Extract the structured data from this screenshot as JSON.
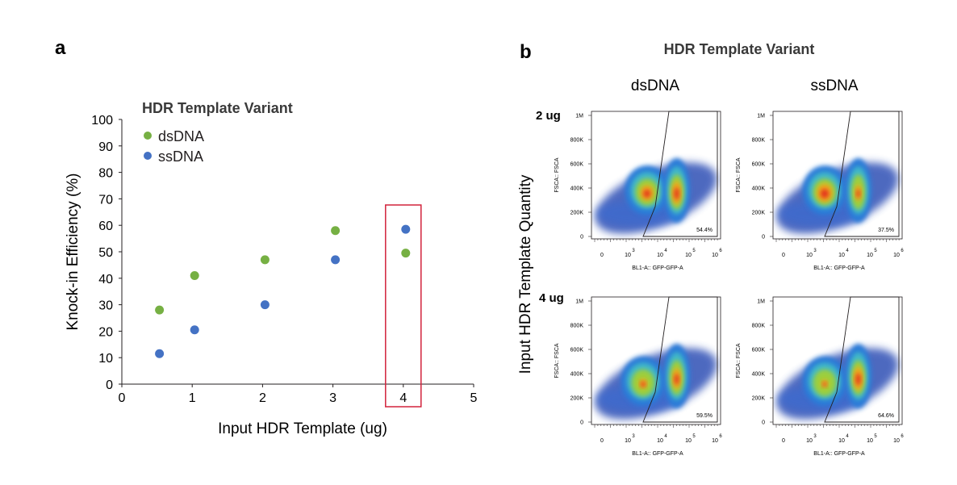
{
  "panels": {
    "a": "a",
    "b": "b"
  },
  "colors": {
    "dsDNA": "#76b043",
    "ssDNA": "#4472c4",
    "highlight": "#d2233c",
    "axis": "#231f20"
  },
  "chart_data": [
    {
      "type": "scatter",
      "legend_title": "HDR Template Variant",
      "xlabel": "Input HDR Template (ug)",
      "ylabel": "Knock-in Efficiency (%)",
      "xlim": [
        0,
        5
      ],
      "ylim": [
        0,
        100
      ],
      "x_ticks": [
        "0",
        "1",
        "2",
        "3",
        "4",
        "5"
      ],
      "y_ticks": [
        "0",
        "10",
        "20",
        "30",
        "40",
        "50",
        "60",
        "70",
        "80",
        "90",
        "100"
      ],
      "legend_position": "top-left",
      "grid": false,
      "highlight_x": 4,
      "series": [
        {
          "name": "dsDNA",
          "color": "#76b043",
          "points": [
            [
              0.5,
              28
            ],
            [
              1,
              41
            ],
            [
              2,
              47
            ],
            [
              3,
              58
            ],
            [
              4,
              49.5
            ]
          ]
        },
        {
          "name": "ssDNA",
          "color": "#4472c4",
          "points": [
            [
              0.5,
              11.5
            ],
            [
              1,
              20.5
            ],
            [
              2,
              30
            ],
            [
              3,
              47
            ],
            [
              4,
              58.5
            ]
          ]
        }
      ]
    },
    {
      "type": "heatmap",
      "title": "HDR Template Variant",
      "columns": [
        "dsDNA",
        "ssDNA"
      ],
      "rows": [
        "2 ug",
        "4 ug"
      ],
      "row_axis_label": "Input HDR Template Quantity",
      "plot_xlabel": "BL1-A:: GFP-GFP-A",
      "plot_ylabel": "FSCA:: FSCA",
      "y_ticks": [
        "0",
        "200K",
        "400K",
        "600K",
        "800K",
        "1M"
      ],
      "x_ticks": [
        "0",
        "10",
        "10",
        "10",
        "10"
      ],
      "x_tick_exponents": [
        "",
        "3",
        "4",
        "5",
        "6"
      ],
      "gate_percent": [
        [
          "54.4%",
          "37.5%"
        ],
        [
          "59.5%",
          "64.6%"
        ]
      ]
    }
  ]
}
